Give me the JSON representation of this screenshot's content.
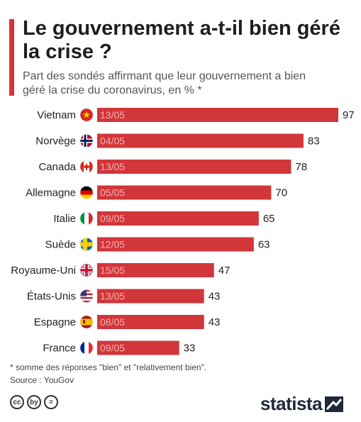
{
  "header": {
    "title": "Le gouvernement a-t-il bien géré la crise ?",
    "subtitle": "Part des sondés affirmant que leur gouvernement a bien géré la crise du coronavirus, en % *"
  },
  "chart_data": {
    "type": "bar",
    "orientation": "horizontal",
    "categories": [
      "Vietnam",
      "Norvège",
      "Canada",
      "Allemagne",
      "Italie",
      "Suède",
      "Royaume-Uni",
      "États-Unis",
      "Espagne",
      "France"
    ],
    "values": [
      97,
      83,
      78,
      70,
      65,
      63,
      47,
      43,
      43,
      33
    ],
    "dates": [
      "13/05",
      "04/05",
      "13/05",
      "05/05",
      "09/05",
      "12/05",
      "15/05",
      "13/05",
      "08/05",
      "09/05"
    ],
    "flags": [
      "vietnam-flag-icon",
      "norway-flag-icon",
      "canada-flag-icon",
      "germany-flag-icon",
      "italy-flag-icon",
      "sweden-flag-icon",
      "uk-flag-icon",
      "usa-flag-icon",
      "spain-flag-icon",
      "france-flag-icon"
    ],
    "xlim": [
      0,
      100
    ],
    "bar_color": "#d1363a",
    "grid": false,
    "legend": "none"
  },
  "footer": {
    "footnote": "* somme des réponses \"bien\" et \"relativement bien\".",
    "source": "Source : YouGov",
    "license_icons": [
      "cc",
      "by",
      "="
    ],
    "brand": "statista"
  },
  "colors": {
    "accent": "#d1363a",
    "title": "#1e1e1e",
    "brand": "#1e2a3a"
  }
}
